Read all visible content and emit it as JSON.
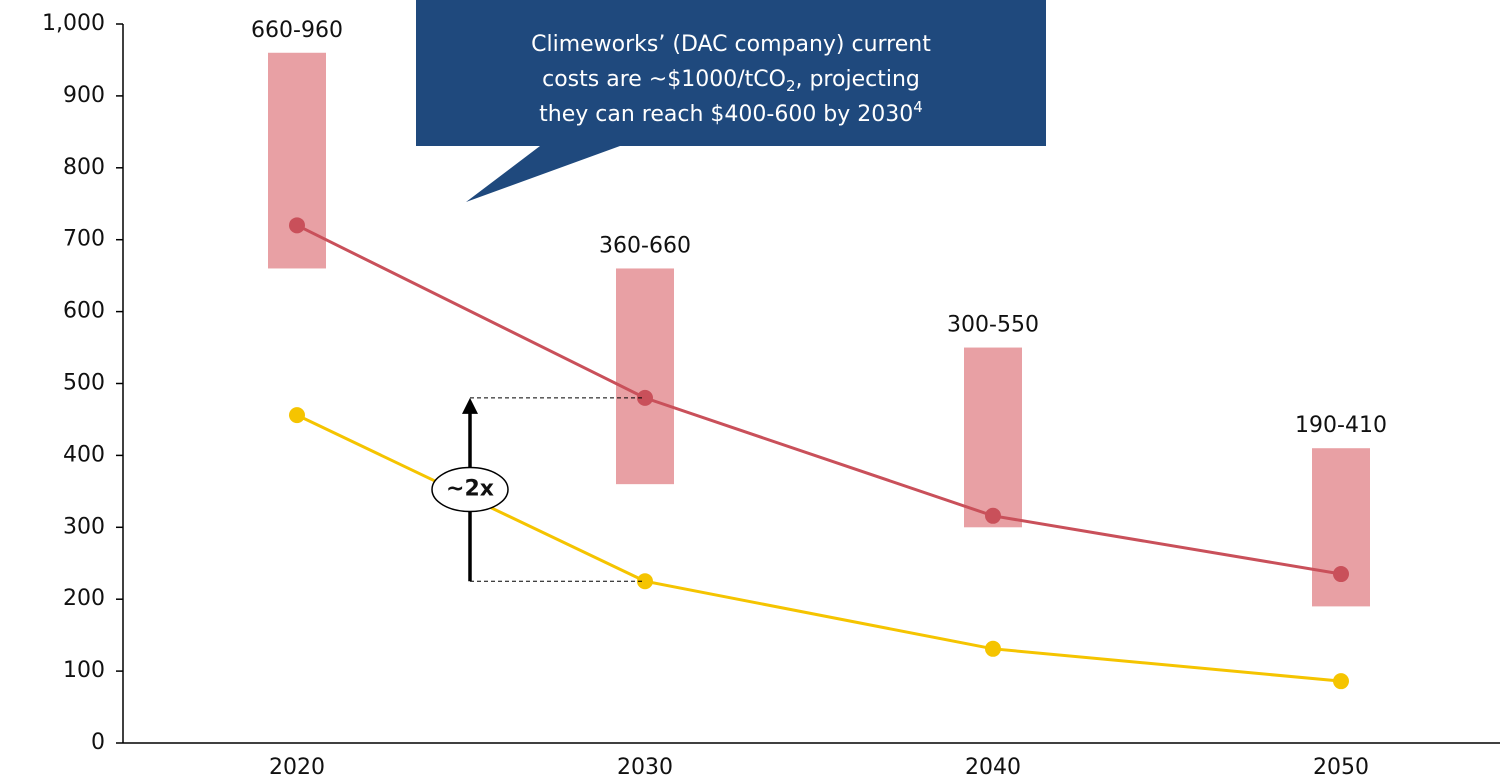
{
  "chart_data": {
    "type": "line",
    "categories": [
      "2020",
      "2030",
      "2040",
      "2050"
    ],
    "series": [
      {
        "color": "#c9505a",
        "values": [
          720,
          480,
          316,
          235
        ]
      },
      {
        "color": "#f5c400",
        "values": [
          456,
          225,
          131,
          86
        ]
      }
    ],
    "ranges": {
      "color": "#e8a0a4",
      "low": [
        660,
        360,
        300,
        190
      ],
      "high": [
        960,
        660,
        550,
        410
      ],
      "value_labels": [
        "660-960",
        "360-660",
        "300-550",
        "190-410"
      ]
    },
    "ylim": [
      0,
      1000
    ],
    "yticks": [
      0,
      100,
      200,
      300,
      400,
      500,
      600,
      700,
      800,
      900,
      {
        "value": 1000,
        "label": "1,000"
      }
    ],
    "callout": [
      "Climeworks’ (DAC company) current",
      "costs are ~$1000/tCO",
      "2",
      ", projecting",
      "they can reach $400-600 by 2030",
      "4"
    ],
    "multiplier_label": "~2x"
  }
}
